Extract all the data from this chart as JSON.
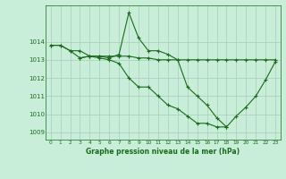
{
  "line1": {
    "x": [
      0,
      1,
      2,
      3,
      4,
      5,
      6,
      7,
      8,
      9,
      10,
      11,
      12,
      13,
      14,
      15,
      16,
      17,
      18,
      19,
      20,
      21,
      22,
      23
    ],
    "y": [
      1013.8,
      1013.8,
      1013.5,
      1013.5,
      1013.2,
      1013.2,
      1013.1,
      1013.3,
      1015.6,
      1014.2,
      1013.5,
      1013.5,
      1013.3,
      1013.0,
      1011.5,
      1011.0,
      1010.5,
      1009.8,
      1009.3,
      1009.9,
      1010.4,
      1011.0,
      1011.9,
      1012.9
    ]
  },
  "line2": {
    "x": [
      0,
      1,
      2,
      3,
      4,
      5,
      6,
      7,
      8,
      9,
      10,
      11,
      12,
      13,
      14,
      15,
      16,
      17,
      18,
      19,
      20,
      21,
      22,
      23
    ],
    "y": [
      1013.8,
      1013.8,
      1013.5,
      1013.1,
      1013.2,
      1013.2,
      1013.2,
      1013.2,
      1013.2,
      1013.1,
      1013.1,
      1013.0,
      1013.0,
      1013.0,
      1013.0,
      1013.0,
      1013.0,
      1013.0,
      1013.0,
      1013.0,
      1013.0,
      1013.0,
      1013.0,
      1013.0
    ]
  },
  "line3": {
    "x": [
      3,
      4,
      5,
      6,
      7,
      8,
      9,
      10,
      11,
      12,
      13,
      14,
      15,
      16,
      17,
      18
    ],
    "y": [
      1013.1,
      1013.2,
      1013.1,
      1013.0,
      1012.8,
      1012.0,
      1011.5,
      1011.5,
      1011.0,
      1010.5,
      1010.3,
      1009.9,
      1009.5,
      1009.5,
      1009.3,
      1009.3
    ]
  },
  "line_color": "#1a6b1a",
  "bg_color": "#c8edd8",
  "grid_color": "#a8ccb8",
  "xlabel": "Graphe pression niveau de la mer (hPa)",
  "xlabel_color": "#1a6b1a",
  "axis_color": "#1a6b1a",
  "yticks": [
    1009,
    1010,
    1011,
    1012,
    1013,
    1014
  ],
  "xticks": [
    0,
    1,
    2,
    3,
    4,
    5,
    6,
    7,
    8,
    9,
    10,
    11,
    12,
    13,
    14,
    15,
    16,
    17,
    18,
    19,
    20,
    21,
    22,
    23
  ],
  "xlim": [
    -0.5,
    23.5
  ],
  "ylim": [
    1008.6,
    1016.0
  ],
  "marker": "+"
}
